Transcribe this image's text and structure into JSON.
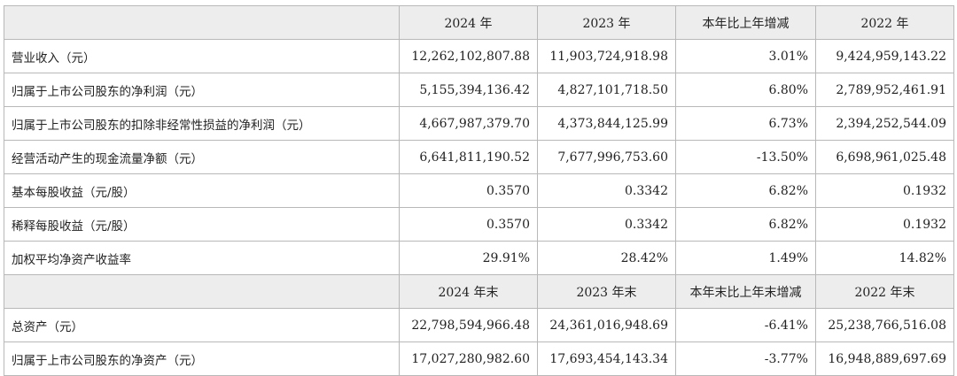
{
  "header1": [
    "2024 年",
    "2023 年",
    "本年比上年增减",
    "2022 年"
  ],
  "rows1": [
    {
      "label": "营业收入（元）",
      "v2024": "12,262,102,807.88",
      "v2023": "11,903,724,918.98",
      "change": "3.01%",
      "v2022": "9,424,959,143.22"
    },
    {
      "label": "归属于上市公司股东的净利润（元）",
      "v2024": "5,155,394,136.42",
      "v2023": "4,827,101,718.50",
      "change": "6.80%",
      "v2022": "2,789,952,461.91"
    },
    {
      "label": "归属于上市公司股东的扣除非经常性损益的净利润（元）",
      "v2024": "4,667,987,379.70",
      "v2023": "4,373,844,125.99",
      "change": "6.73%",
      "v2022": "2,394,252,544.09"
    },
    {
      "label": "经营活动产生的现金流量净额（元）",
      "v2024": "6,641,811,190.52",
      "v2023": "7,677,996,753.60",
      "change": "-13.50%",
      "v2022": "6,698,961,025.48"
    },
    {
      "label": "基本每股收益（元/股）",
      "v2024": "0.3570",
      "v2023": "0.3342",
      "change": "6.82%",
      "v2022": "0.1932"
    },
    {
      "label": "稀释每股收益（元/股）",
      "v2024": "0.3570",
      "v2023": "0.3342",
      "change": "6.82%",
      "v2022": "0.1932"
    },
    {
      "label": "加权平均净资产收益率",
      "v2024": "29.91%",
      "v2023": "28.42%",
      "change": "1.49%",
      "v2022": "14.82%"
    }
  ],
  "header2": [
    "2024 年末",
    "2023 年末",
    "本年末比上年末增减",
    "2022 年末"
  ],
  "rows2": [
    {
      "label": "总资产（元）",
      "v2024": "22,798,594,966.48",
      "v2023": "24,361,016,948.69",
      "change": "-6.41%",
      "v2022": "25,238,766,516.08"
    },
    {
      "label": "归属于上市公司股东的净资产（元）",
      "v2024": "17,027,280,982.60",
      "v2023": "17,693,454,143.34",
      "change": "-3.77%",
      "v2022": "16,948,889,697.69"
    }
  ]
}
